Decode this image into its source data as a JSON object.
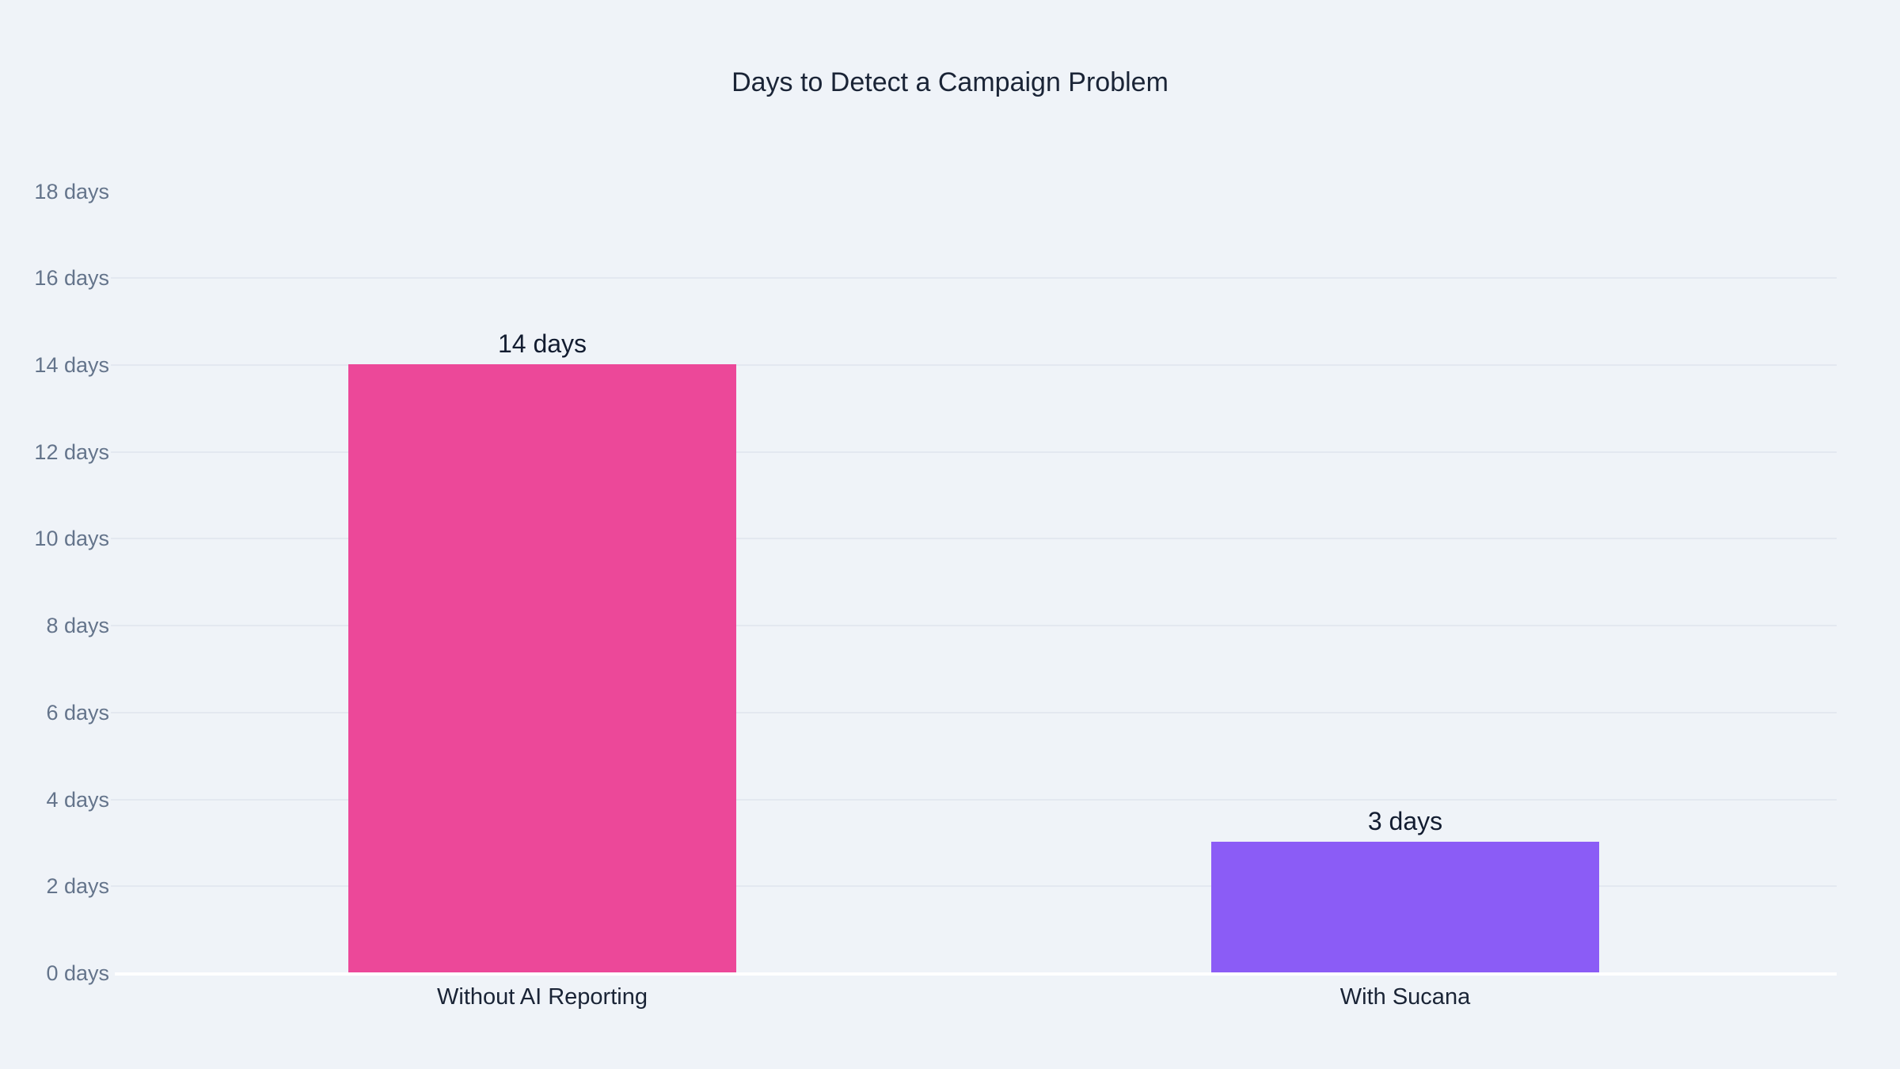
{
  "colors": {
    "background": "#eff3f8",
    "gridline": "#e3e8f0",
    "zero_line": "#ffffff",
    "title_text": "#1a2436",
    "tick_label_text": "#64748b",
    "category_label_text": "#1a2436",
    "value_label_text": "#121c30"
  },
  "chart_data": {
    "type": "bar",
    "title": "Days to Detect a Campaign Problem",
    "categories": [
      "Without AI Reporting",
      "With Sucana"
    ],
    "values": [
      14,
      3
    ],
    "value_labels": [
      "14 days",
      "3 days"
    ],
    "bar_colors": [
      "#ec4899",
      "#8b5cf6"
    ],
    "xlabel": "",
    "ylabel": "",
    "ylim": [
      0,
      18
    ],
    "ytick_interval": 2,
    "ytick_labels": [
      "0 days",
      "2 days",
      "4 days",
      "6 days",
      "8 days",
      "10 days",
      "12 days",
      "14 days",
      "16 days",
      "18 days"
    ],
    "gridlines_at": [
      2,
      4,
      6,
      8,
      10,
      12,
      14,
      16
    ],
    "grid": true,
    "legend": "none"
  }
}
